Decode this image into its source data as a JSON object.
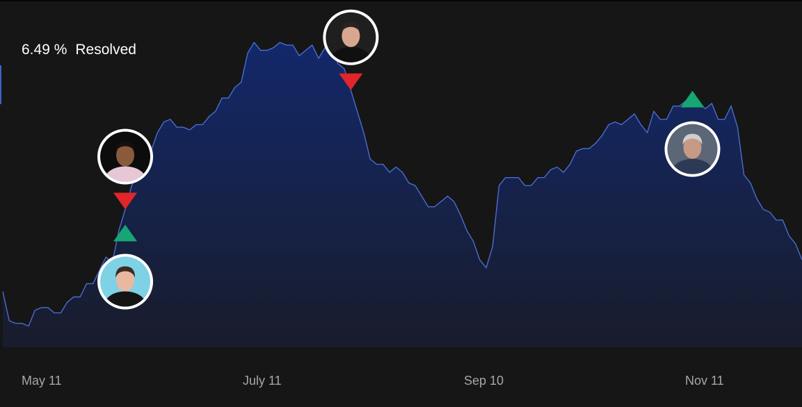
{
  "headline": {
    "value": "6.49 %",
    "status": "Resolved"
  },
  "colors": {
    "background": "#161616",
    "line": "#4a6dcf",
    "area_top": "#13286a",
    "area_bottom": "#181c2b",
    "up_marker": "#17a673",
    "down_marker": "#e0262a",
    "avatar_ring": "#ffffff"
  },
  "chart_data": {
    "type": "area",
    "title": "",
    "xlabel": "",
    "ylabel": "",
    "x_tick_labels": [
      "May 11",
      "July 11",
      "Sep 10",
      "Nov 11"
    ],
    "ylim": [
      0,
      12
    ],
    "grid": false,
    "legend": "none",
    "series": [
      {
        "values": [
          2.1,
          1.0,
          0.9,
          0.9,
          0.8,
          1.4,
          1.5,
          1.5,
          1.3,
          1.3,
          1.7,
          1.9,
          1.9,
          2.4,
          2.4,
          2.9,
          3.4,
          3.2,
          4.4,
          5.2,
          6.1,
          6.6,
          6.9,
          7.4,
          8.1,
          8.5,
          8.6,
          8.3,
          8.3,
          8.2,
          8.4,
          8.4,
          8.7,
          8.9,
          9.4,
          9.4,
          9.8,
          10.0,
          11.1,
          11.5,
          11.2,
          11.2,
          11.3,
          11.5,
          11.4,
          11.4,
          11.0,
          11.2,
          11.4,
          10.9,
          11.3,
          11.4,
          10.7,
          10.5,
          9.7,
          8.9,
          8.1,
          7.1,
          6.9,
          6.9,
          6.6,
          6.8,
          6.6,
          6.2,
          6.1,
          5.7,
          5.3,
          5.3,
          5.5,
          5.7,
          5.5,
          5.0,
          4.4,
          4.0,
          3.3,
          3.0,
          3.8,
          6.1,
          6.4,
          6.4,
          6.4,
          6.1,
          6.1,
          6.4,
          6.4,
          6.7,
          6.8,
          6.6,
          6.9,
          7.4,
          7.5,
          7.5,
          7.7,
          8.0,
          8.4,
          8.5,
          8.4,
          8.6,
          8.8,
          8.4,
          8.1,
          8.9,
          8.6,
          8.6,
          9.1,
          9.1,
          9.3,
          9.1,
          9.2,
          9.0,
          9.2,
          8.6,
          8.6,
          9.1,
          8.3,
          6.5,
          6.2,
          5.6,
          5.2,
          5.1,
          4.8,
          4.8,
          4.2,
          3.9,
          3.3
        ]
      }
    ]
  },
  "annotations": [
    {
      "name": "annotation-down-1",
      "direction": "down",
      "index": 19,
      "avatar": "man-dark-hair-avatar"
    },
    {
      "name": "annotation-up-1",
      "direction": "up",
      "index": 19,
      "avatar": "man-beach-avatar"
    },
    {
      "name": "annotation-down-2",
      "direction": "down",
      "index": 54,
      "avatar": "man-suit-avatar"
    },
    {
      "name": "annotation-up-2",
      "direction": "up",
      "index": 107,
      "avatar": "man-grey-suit-avatar"
    }
  ]
}
